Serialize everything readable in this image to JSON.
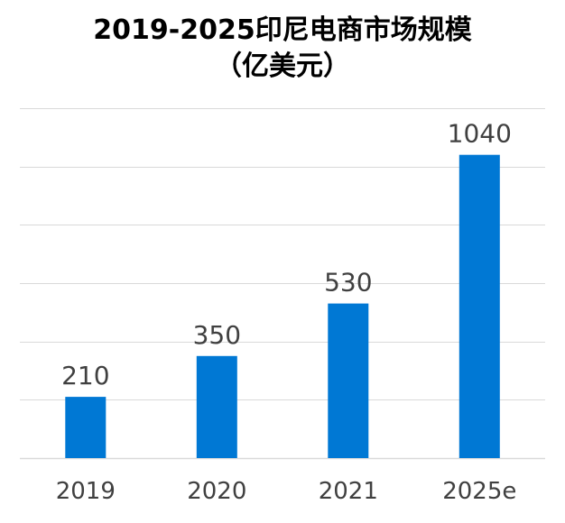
{
  "chart_data": {
    "type": "bar",
    "title": [
      "2019-2025印尼电商市场规模",
      "（亿美元）"
    ],
    "categories": [
      "2019",
      "2020",
      "2021",
      "2025e"
    ],
    "values": [
      210,
      350,
      530,
      1040
    ],
    "data_labels": [
      "210",
      "350",
      "530",
      "1040"
    ],
    "xlabel": "",
    "ylabel": "",
    "ylim": [
      0,
      1200
    ],
    "grid": true,
    "legend": "none",
    "bar_color": "#0078D4",
    "gridline_color": "#D9D9D9",
    "label_color": "#404040"
  }
}
